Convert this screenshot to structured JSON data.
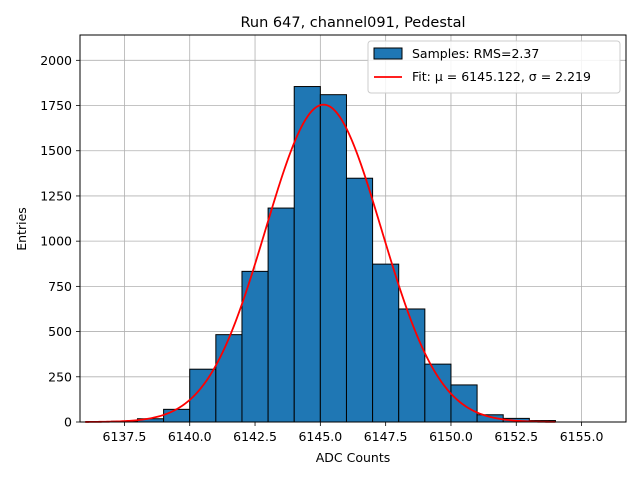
{
  "chart_data": {
    "type": "bar",
    "title": "Run 647, channel091, Pedestal",
    "xlabel": "ADC Counts",
    "ylabel": "Entries",
    "xlim": [
      6135.8,
      6156.7
    ],
    "ylim": [
      0,
      2140
    ],
    "grid": true,
    "legend_position": "top-right",
    "x_ticks": [
      6137.5,
      6140.0,
      6142.5,
      6145.0,
      6147.5,
      6150.0,
      6152.5,
      6155.0
    ],
    "x_tick_labels": [
      "6137.5",
      "6140.0",
      "6142.5",
      "6145.0",
      "6147.5",
      "6150.0",
      "6152.5",
      "6155.0"
    ],
    "y_ticks": [
      0,
      250,
      500,
      750,
      1000,
      1250,
      1500,
      1750,
      2000
    ],
    "y_tick_labels": [
      "0",
      "250",
      "500",
      "750",
      "1000",
      "1250",
      "1500",
      "1750",
      "2000"
    ],
    "histogram": {
      "name": "Samples: RMS=2.37",
      "color": "#1f77b4",
      "edge_color": "#000000",
      "bin_edges": [
        6137,
        6138,
        6139,
        6140,
        6141,
        6142,
        6143,
        6144,
        6145,
        6146,
        6147,
        6148,
        6149,
        6150,
        6151,
        6152,
        6153,
        6154
      ],
      "values": [
        4,
        18,
        70,
        292,
        483,
        833,
        1183,
        1855,
        1810,
        1348,
        873,
        625,
        320,
        205,
        40,
        20,
        8
      ]
    },
    "fit": {
      "name": "Fit: μ = 6145.122, σ = 2.219",
      "color": "#ff0000",
      "type": "gaussian",
      "mu": 6145.122,
      "sigma": 2.219,
      "amplitude": 1755,
      "x_range": [
        6136.0,
        6154.0
      ]
    }
  }
}
